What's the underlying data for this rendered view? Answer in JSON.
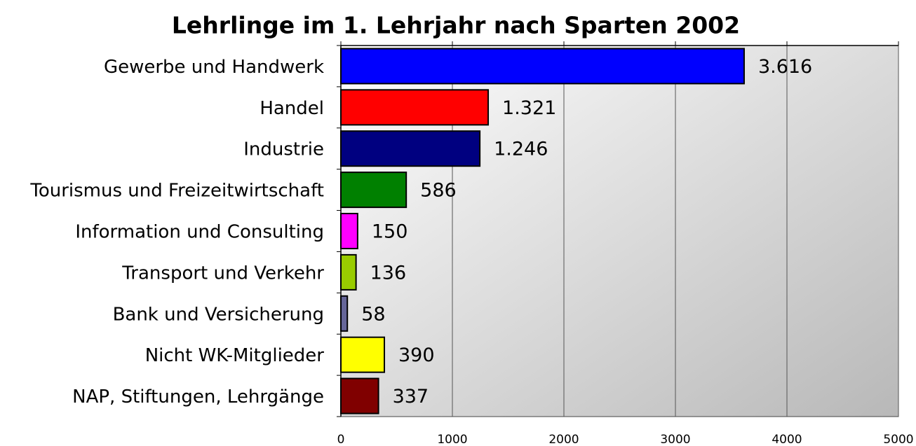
{
  "chart_data": {
    "type": "bar",
    "orientation": "horizontal",
    "title": "Lehrlinge im 1. Lehrjahr nach Sparten 2002",
    "categories": [
      "Gewerbe und Handwerk",
      "Handel",
      "Industrie",
      "Tourismus und Freizeitwirtschaft",
      "Information und Consulting",
      "Transport und Verkehr",
      "Bank und Versicherung",
      "Nicht WK-Mitglieder",
      "NAP, Stiftungen, Lehrgänge"
    ],
    "values": [
      3616,
      1321,
      1246,
      586,
      150,
      136,
      58,
      390,
      337
    ],
    "value_labels": [
      "3.616",
      "1.321",
      "1.246",
      "586",
      "150",
      "136",
      "58",
      "390",
      "337"
    ],
    "colors": [
      "#0000ff",
      "#ff0000",
      "#000080",
      "#008000",
      "#ff00ff",
      "#99cc00",
      "#666699",
      "#ffff00",
      "#800000"
    ],
    "xlim": [
      0,
      5000
    ],
    "xticks": [
      0,
      1000,
      2000,
      3000,
      4000,
      5000
    ],
    "grid": true
  }
}
